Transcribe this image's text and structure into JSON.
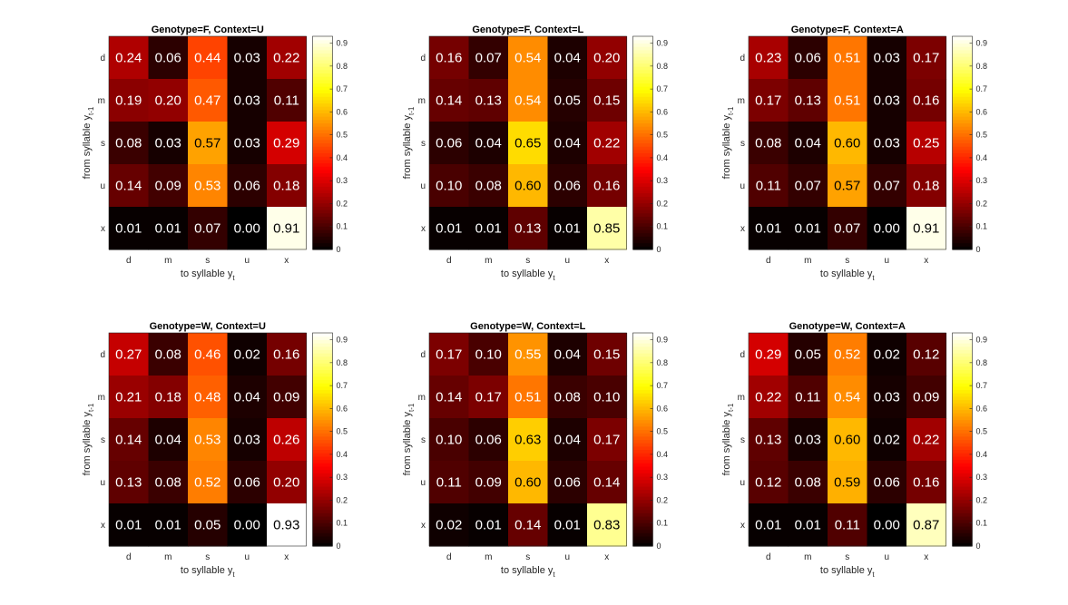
{
  "chart_data": [
    {
      "type": "heatmap",
      "title": "Genotype=F, Context=U",
      "xlabel": "to syllable y",
      "xlabel_sub": "t",
      "ylabel": "from syllable y",
      "ylabel_sub": "t-1",
      "x_categories": [
        "d",
        "m",
        "s",
        "u",
        "x"
      ],
      "y_categories": [
        "d",
        "m",
        "s",
        "u",
        "x"
      ],
      "values": [
        [
          0.24,
          0.06,
          0.44,
          0.03,
          0.22
        ],
        [
          0.19,
          0.2,
          0.47,
          0.03,
          0.11
        ],
        [
          0.08,
          0.03,
          0.57,
          0.03,
          0.29
        ],
        [
          0.14,
          0.09,
          0.53,
          0.06,
          0.18
        ],
        [
          0.01,
          0.01,
          0.07,
          0.0,
          0.91
        ]
      ],
      "value_labels": [
        [
          "0.24",
          "0.06",
          "0.44",
          "0.03",
          "0.22"
        ],
        [
          "0.19",
          "0.20",
          "0.47",
          "0.03",
          "0.11"
        ],
        [
          "0.08",
          "0.03",
          "0.57",
          "0.03",
          "0.29"
        ],
        [
          "0.14",
          "0.09",
          "0.53",
          "0.06",
          "0.18"
        ],
        [
          "0.01",
          "0.01",
          "0.07",
          "0.00",
          "0.91"
        ]
      ],
      "colorbar_range": [
        0,
        0.93
      ],
      "colorbar_ticks": [
        "0",
        "0.1",
        "0.2",
        "0.3",
        "0.4",
        "0.5",
        "0.6",
        "0.7",
        "0.8",
        "0.9"
      ],
      "colormap": "hot"
    },
    {
      "type": "heatmap",
      "title": "Genotype=F, Context=L",
      "xlabel": "to syllable y",
      "xlabel_sub": "t",
      "ylabel": "from syllable y",
      "ylabel_sub": "t-1",
      "x_categories": [
        "d",
        "m",
        "s",
        "u",
        "x"
      ],
      "y_categories": [
        "d",
        "m",
        "s",
        "u",
        "x"
      ],
      "values": [
        [
          0.16,
          0.07,
          0.54,
          0.04,
          0.2
        ],
        [
          0.14,
          0.13,
          0.54,
          0.05,
          0.15
        ],
        [
          0.06,
          0.04,
          0.65,
          0.04,
          0.22
        ],
        [
          0.1,
          0.08,
          0.6,
          0.06,
          0.16
        ],
        [
          0.01,
          0.01,
          0.13,
          0.01,
          0.85
        ]
      ],
      "value_labels": [
        [
          "0.16",
          "0.07",
          "0.54",
          "0.04",
          "0.20"
        ],
        [
          "0.14",
          "0.13",
          "0.54",
          "0.05",
          "0.15"
        ],
        [
          "0.06",
          "0.04",
          "0.65",
          "0.04",
          "0.22"
        ],
        [
          "0.10",
          "0.08",
          "0.60",
          "0.06",
          "0.16"
        ],
        [
          "0.01",
          "0.01",
          "0.13",
          "0.01",
          "0.85"
        ]
      ],
      "colorbar_range": [
        0,
        0.93
      ],
      "colorbar_ticks": [
        "0",
        "0.1",
        "0.2",
        "0.3",
        "0.4",
        "0.5",
        "0.6",
        "0.7",
        "0.8",
        "0.9"
      ],
      "colormap": "hot"
    },
    {
      "type": "heatmap",
      "title": "Genotype=F, Context=A",
      "xlabel": "to syllable y",
      "xlabel_sub": "t",
      "ylabel": "from syllable y",
      "ylabel_sub": "t-1",
      "x_categories": [
        "d",
        "m",
        "s",
        "u",
        "x"
      ],
      "y_categories": [
        "d",
        "m",
        "s",
        "u",
        "x"
      ],
      "values": [
        [
          0.23,
          0.06,
          0.51,
          0.03,
          0.17
        ],
        [
          0.17,
          0.13,
          0.51,
          0.03,
          0.16
        ],
        [
          0.08,
          0.04,
          0.6,
          0.03,
          0.25
        ],
        [
          0.11,
          0.07,
          0.57,
          0.07,
          0.18
        ],
        [
          0.01,
          0.01,
          0.07,
          0.0,
          0.91
        ]
      ],
      "value_labels": [
        [
          "0.23",
          "0.06",
          "0.51",
          "0.03",
          "0.17"
        ],
        [
          "0.17",
          "0.13",
          "0.51",
          "0.03",
          "0.16"
        ],
        [
          "0.08",
          "0.04",
          "0.60",
          "0.03",
          "0.25"
        ],
        [
          "0.11",
          "0.07",
          "0.57",
          "0.07",
          "0.18"
        ],
        [
          "0.01",
          "0.01",
          "0.07",
          "0.00",
          "0.91"
        ]
      ],
      "colorbar_range": [
        0,
        0.93
      ],
      "colorbar_ticks": [
        "0",
        "0.1",
        "0.2",
        "0.3",
        "0.4",
        "0.5",
        "0.6",
        "0.7",
        "0.8",
        "0.9"
      ],
      "colormap": "hot"
    },
    {
      "type": "heatmap",
      "title": "Genotype=W, Context=U",
      "xlabel": "to syllable y",
      "xlabel_sub": "t",
      "ylabel": "from syllable y",
      "ylabel_sub": "t-1",
      "x_categories": [
        "d",
        "m",
        "s",
        "u",
        "x"
      ],
      "y_categories": [
        "d",
        "m",
        "s",
        "u",
        "x"
      ],
      "values": [
        [
          0.27,
          0.08,
          0.46,
          0.02,
          0.16
        ],
        [
          0.21,
          0.18,
          0.48,
          0.04,
          0.09
        ],
        [
          0.14,
          0.04,
          0.53,
          0.03,
          0.26
        ],
        [
          0.13,
          0.08,
          0.52,
          0.06,
          0.2
        ],
        [
          0.01,
          0.01,
          0.05,
          0.0,
          0.93
        ]
      ],
      "value_labels": [
        [
          "0.27",
          "0.08",
          "0.46",
          "0.02",
          "0.16"
        ],
        [
          "0.21",
          "0.18",
          "0.48",
          "0.04",
          "0.09"
        ],
        [
          "0.14",
          "0.04",
          "0.53",
          "0.03",
          "0.26"
        ],
        [
          "0.13",
          "0.08",
          "0.52",
          "0.06",
          "0.20"
        ],
        [
          "0.01",
          "0.01",
          "0.05",
          "0.00",
          "0.93"
        ]
      ],
      "colorbar_range": [
        0,
        0.93
      ],
      "colorbar_ticks": [
        "0",
        "0.1",
        "0.2",
        "0.3",
        "0.4",
        "0.5",
        "0.6",
        "0.7",
        "0.8",
        "0.9"
      ],
      "colormap": "hot"
    },
    {
      "type": "heatmap",
      "title": "Genotype=W, Context=L",
      "xlabel": "to syllable y",
      "xlabel_sub": "t",
      "ylabel": "from syllable y",
      "ylabel_sub": "t-1",
      "x_categories": [
        "d",
        "m",
        "s",
        "u",
        "x"
      ],
      "y_categories": [
        "d",
        "m",
        "s",
        "u",
        "x"
      ],
      "values": [
        [
          0.17,
          0.1,
          0.55,
          0.04,
          0.15
        ],
        [
          0.14,
          0.17,
          0.51,
          0.08,
          0.1
        ],
        [
          0.1,
          0.06,
          0.63,
          0.04,
          0.17
        ],
        [
          0.11,
          0.09,
          0.6,
          0.06,
          0.14
        ],
        [
          0.02,
          0.01,
          0.14,
          0.01,
          0.83
        ]
      ],
      "value_labels": [
        [
          "0.17",
          "0.10",
          "0.55",
          "0.04",
          "0.15"
        ],
        [
          "0.14",
          "0.17",
          "0.51",
          "0.08",
          "0.10"
        ],
        [
          "0.10",
          "0.06",
          "0.63",
          "0.04",
          "0.17"
        ],
        [
          "0.11",
          "0.09",
          "0.60",
          "0.06",
          "0.14"
        ],
        [
          "0.02",
          "0.01",
          "0.14",
          "0.01",
          "0.83"
        ]
      ],
      "colorbar_range": [
        0,
        0.93
      ],
      "colorbar_ticks": [
        "0",
        "0.1",
        "0.2",
        "0.3",
        "0.4",
        "0.5",
        "0.6",
        "0.7",
        "0.8",
        "0.9"
      ],
      "colormap": "hot"
    },
    {
      "type": "heatmap",
      "title": "Genotype=W, Context=A",
      "xlabel": "to syllable y",
      "xlabel_sub": "t",
      "ylabel": "from syllable y",
      "ylabel_sub": "t-1",
      "x_categories": [
        "d",
        "m",
        "s",
        "u",
        "x"
      ],
      "y_categories": [
        "d",
        "m",
        "s",
        "u",
        "x"
      ],
      "values": [
        [
          0.29,
          0.05,
          0.52,
          0.02,
          0.12
        ],
        [
          0.22,
          0.11,
          0.54,
          0.03,
          0.09
        ],
        [
          0.13,
          0.03,
          0.6,
          0.02,
          0.22
        ],
        [
          0.12,
          0.08,
          0.59,
          0.06,
          0.16
        ],
        [
          0.01,
          0.01,
          0.11,
          0.0,
          0.87
        ]
      ],
      "value_labels": [
        [
          "0.29",
          "0.05",
          "0.52",
          "0.02",
          "0.12"
        ],
        [
          "0.22",
          "0.11",
          "0.54",
          "0.03",
          "0.09"
        ],
        [
          "0.13",
          "0.03",
          "0.60",
          "0.02",
          "0.22"
        ],
        [
          "0.12",
          "0.08",
          "0.59",
          "0.06",
          "0.16"
        ],
        [
          "0.01",
          "0.01",
          "0.11",
          "0.00",
          "0.87"
        ]
      ],
      "colorbar_range": [
        0,
        0.93
      ],
      "colorbar_ticks": [
        "0",
        "0.1",
        "0.2",
        "0.3",
        "0.4",
        "0.5",
        "0.6",
        "0.7",
        "0.8",
        "0.9"
      ],
      "colormap": "hot"
    }
  ]
}
